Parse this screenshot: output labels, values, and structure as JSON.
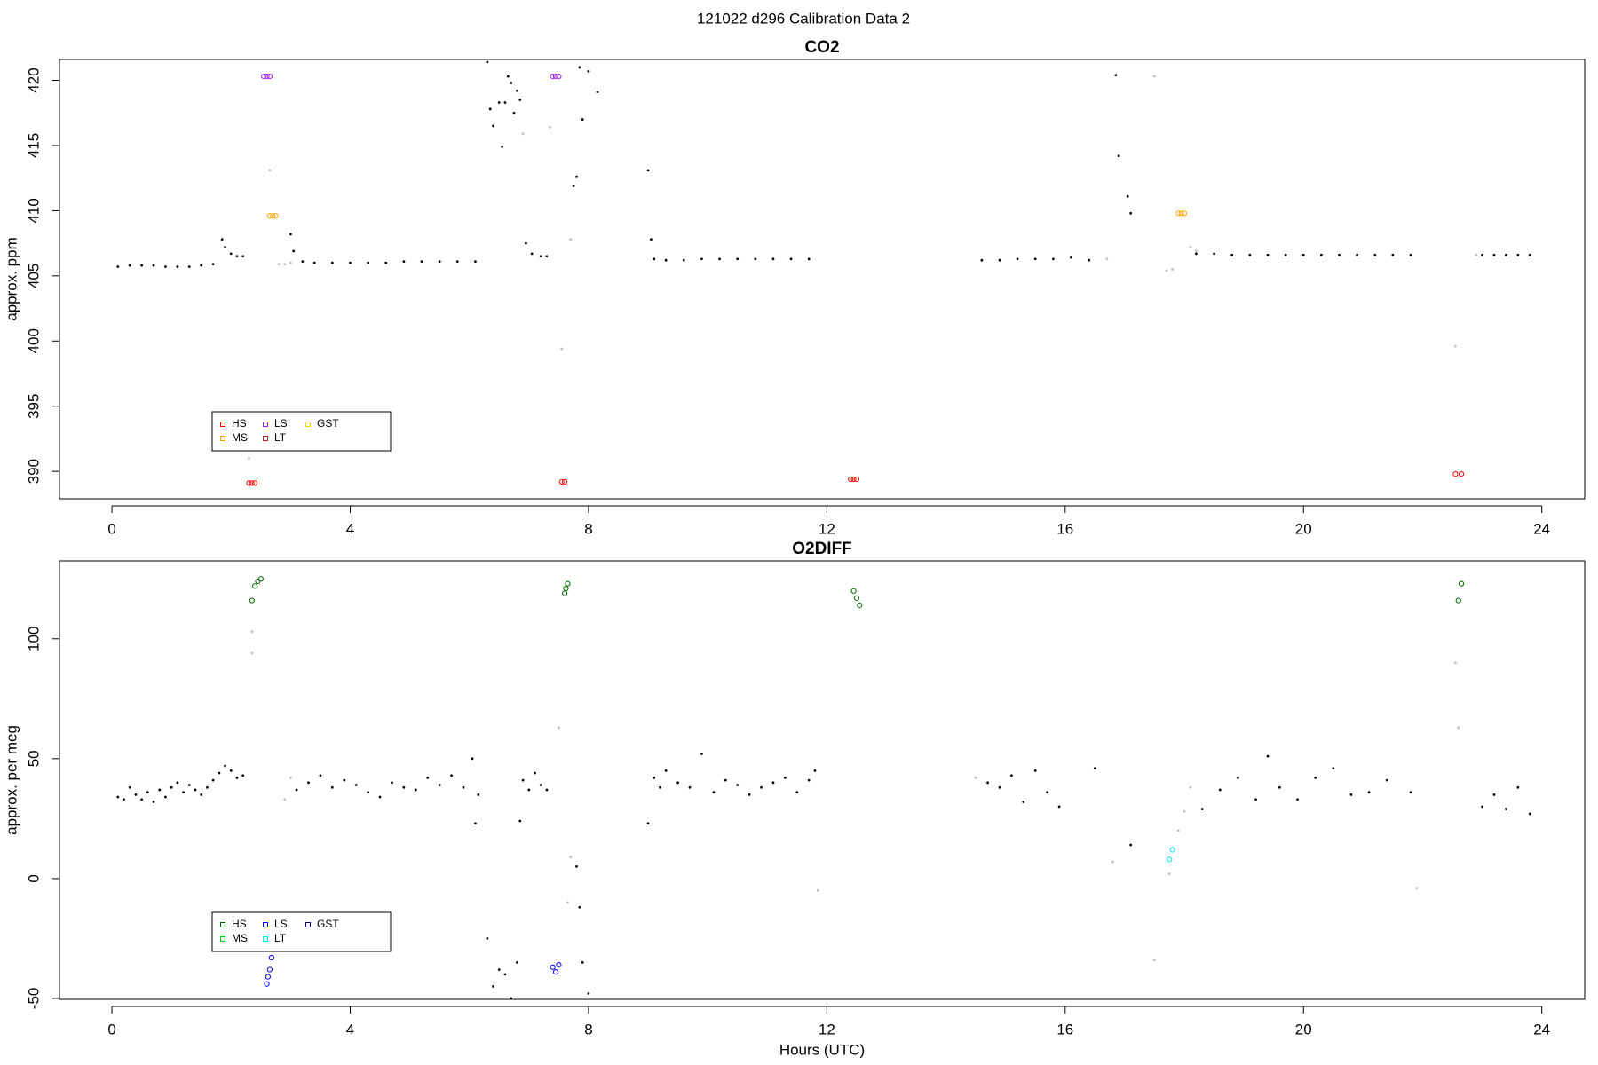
{
  "title": "121022   d296   Calibration Data 2",
  "chart_data": [
    {
      "type": "scatter",
      "title": "CO2",
      "ylabel": "approx. ppm",
      "xlim": [
        -0.88,
        24.72
      ],
      "ylim": [
        387.9,
        421.6
      ],
      "xticks": [
        0,
        4,
        8,
        12,
        16,
        20,
        24
      ],
      "yticks": [
        390,
        395,
        400,
        405,
        410,
        415,
        420
      ],
      "legend": "bottom-left",
      "series": [
        {
          "name": "HS",
          "color": "#ff0000",
          "marker": "open",
          "x": [
            2.3,
            2.35,
            2.4,
            7.55,
            7.6,
            12.4,
            12.45,
            12.5,
            22.55,
            22.65
          ],
          "values": [
            389.1,
            389.1,
            389.1,
            389.2,
            389.2,
            389.4,
            389.4,
            389.4,
            389.8,
            389.8
          ]
        },
        {
          "name": "MS",
          "color": "#ffa500",
          "marker": "open",
          "x": [
            2.65,
            2.7,
            2.75,
            17.9,
            17.95,
            18.0
          ],
          "values": [
            409.6,
            409.6,
            409.6,
            409.8,
            409.8,
            409.8
          ]
        },
        {
          "name": "LS",
          "color": "#a020f0",
          "marker": "open",
          "x": [
            2.55,
            2.6,
            2.65,
            7.4,
            7.45,
            7.5
          ],
          "values": [
            420.3,
            420.3,
            420.3,
            420.3,
            420.3,
            420.3
          ]
        },
        {
          "name": "LT",
          "color": "#b22222",
          "marker": "open",
          "x": [],
          "values": []
        },
        {
          "name": "GST",
          "color": "#ffd700",
          "marker": "open",
          "x": [],
          "values": []
        },
        {
          "color": "#000000",
          "marker": "dot",
          "x": [
            0.1,
            0.3,
            0.5,
            0.7,
            0.9,
            1.1,
            1.3,
            1.5,
            1.7,
            1.85,
            1.9,
            2.0,
            2.1,
            2.2,
            3.0,
            3.05,
            3.2,
            3.4,
            3.7,
            4.0,
            4.3,
            4.6,
            4.9,
            5.2,
            5.5,
            5.8,
            6.1,
            6.3,
            6.35,
            6.4,
            6.5,
            6.55,
            6.6,
            6.65,
            6.7,
            6.75,
            6.8,
            6.85,
            6.95,
            7.05,
            7.2,
            7.3,
            7.75,
            7.8,
            7.85,
            7.9,
            8.0,
            8.15,
            9.0,
            9.05,
            9.1,
            9.3,
            9.6,
            9.9,
            10.2,
            10.5,
            10.8,
            11.1,
            11.4,
            11.7,
            14.6,
            14.9,
            15.2,
            15.5,
            15.8,
            16.1,
            16.4,
            16.85,
            16.9,
            17.05,
            17.1,
            18.2,
            18.5,
            18.8,
            19.1,
            19.4,
            19.7,
            20.0,
            20.3,
            20.6,
            20.9,
            21.2,
            21.5,
            21.8,
            23.0,
            23.2,
            23.4,
            23.6,
            23.8
          ],
          "values": [
            405.7,
            405.8,
            405.8,
            405.8,
            405.7,
            405.7,
            405.7,
            405.8,
            405.9,
            407.8,
            407.2,
            406.7,
            406.5,
            406.5,
            408.2,
            406.9,
            406.1,
            406.0,
            406.0,
            406.0,
            406.0,
            406.0,
            406.1,
            406.1,
            406.1,
            406.1,
            406.1,
            421.4,
            417.8,
            416.5,
            418.3,
            414.9,
            418.3,
            420.3,
            419.8,
            417.5,
            419.2,
            418.5,
            407.5,
            406.7,
            406.5,
            406.5,
            411.9,
            412.6,
            421.0,
            417.0,
            420.7,
            419.1,
            413.1,
            407.8,
            406.3,
            406.2,
            406.2,
            406.3,
            406.3,
            406.3,
            406.3,
            406.3,
            406.3,
            406.3,
            406.2,
            406.2,
            406.3,
            406.3,
            406.3,
            406.4,
            406.2,
            420.4,
            414.2,
            411.1,
            409.8,
            406.7,
            406.7,
            406.6,
            406.6,
            406.6,
            406.6,
            406.6,
            406.6,
            406.6,
            406.6,
            406.6,
            406.6,
            406.6,
            406.6,
            406.6,
            406.6,
            406.6,
            406.6
          ]
        },
        {
          "color": "#bebebe",
          "marker": "dot",
          "x": [
            2.3,
            2.65,
            2.8,
            2.9,
            3.0,
            6.9,
            7.35,
            7.55,
            7.7,
            16.7,
            17.5,
            17.7,
            17.8,
            18.1,
            18.2,
            22.55,
            22.9
          ],
          "values": [
            391.0,
            413.1,
            405.9,
            405.9,
            406.0,
            415.9,
            416.4,
            399.4,
            407.8,
            406.3,
            420.3,
            405.4,
            405.5,
            407.2,
            406.9,
            399.6,
            406.6
          ]
        }
      ]
    },
    {
      "type": "scatter",
      "title": "O2DIFF",
      "ylabel": "approx. per meg",
      "xlabel": "Hours (UTC)",
      "xlim": [
        -0.88,
        24.72
      ],
      "ylim": [
        -50.4,
        132.5
      ],
      "xticks": [
        0,
        4,
        8,
        12,
        16,
        20,
        24
      ],
      "yticks": [
        -50,
        0,
        50,
        100
      ],
      "legend": "bottom-left",
      "series": [
        {
          "name": "HS",
          "color": "#006400",
          "marker": "open",
          "x": [
            2.35,
            2.4,
            2.45,
            2.5,
            7.6,
            7.62,
            7.65,
            12.45,
            12.5,
            12.55,
            22.6,
            22.65
          ],
          "values": [
            116,
            122,
            124,
            125,
            119,
            121,
            123,
            120,
            117,
            114,
            116,
            123
          ]
        },
        {
          "name": "MS",
          "color": "#00cd00",
          "marker": "open",
          "x": [],
          "values": []
        },
        {
          "name": "LS",
          "color": "#0000ff",
          "marker": "open",
          "x": [
            2.6,
            2.62,
            2.65,
            2.68,
            7.4,
            7.45,
            7.5
          ],
          "values": [
            -44,
            -41,
            -38,
            -33,
            -37,
            -39,
            -36
          ]
        },
        {
          "name": "LT",
          "color": "#00e5ee",
          "marker": "open",
          "x": [
            17.75,
            17.8
          ],
          "values": [
            8,
            12
          ]
        },
        {
          "name": "GST",
          "color": "#00008b",
          "marker": "open",
          "x": [],
          "values": []
        },
        {
          "color": "#000000",
          "marker": "dot",
          "x": [
            0.1,
            0.2,
            0.3,
            0.4,
            0.5,
            0.6,
            0.7,
            0.8,
            0.9,
            1.0,
            1.1,
            1.2,
            1.3,
            1.4,
            1.5,
            1.6,
            1.7,
            1.8,
            1.9,
            2.0,
            2.1,
            2.2,
            3.1,
            3.3,
            3.5,
            3.7,
            3.9,
            4.1,
            4.3,
            4.5,
            4.7,
            4.9,
            5.1,
            5.3,
            5.5,
            5.7,
            5.9,
            6.05,
            6.1,
            6.15,
            6.3,
            6.4,
            6.5,
            6.6,
            6.7,
            6.8,
            6.85,
            6.9,
            7.0,
            7.1,
            7.2,
            7.3,
            7.8,
            7.85,
            7.9,
            8.0,
            9.0,
            9.1,
            9.2,
            9.3,
            9.5,
            9.7,
            9.9,
            10.1,
            10.3,
            10.5,
            10.7,
            10.9,
            11.1,
            11.3,
            11.5,
            11.7,
            11.8,
            14.7,
            14.9,
            15.1,
            15.3,
            15.5,
            15.7,
            15.9,
            16.5,
            17.1,
            18.3,
            18.6,
            18.9,
            19.2,
            19.4,
            19.6,
            19.9,
            20.2,
            20.5,
            20.8,
            21.1,
            21.4,
            21.8,
            23.0,
            23.2,
            23.4,
            23.6,
            23.8
          ],
          "values": [
            34,
            33,
            38,
            35,
            33,
            36,
            32,
            37,
            34,
            38,
            40,
            36,
            39,
            37,
            35,
            38,
            41,
            44,
            47,
            45,
            42,
            43,
            37,
            40,
            43,
            38,
            41,
            39,
            36,
            34,
            40,
            38,
            37,
            42,
            39,
            43,
            38,
            50,
            23,
            35,
            -25,
            -45,
            -38,
            -40,
            -50,
            -35,
            24,
            41,
            37,
            44,
            39,
            37,
            5,
            -12,
            -35,
            -48,
            23,
            42,
            38,
            45,
            40,
            38,
            52,
            36,
            41,
            39,
            35,
            38,
            40,
            42,
            36,
            41,
            45,
            40,
            38,
            43,
            32,
            45,
            36,
            30,
            46,
            14,
            29,
            37,
            42,
            33,
            51,
            38,
            33,
            42,
            46,
            35,
            36,
            41,
            36,
            30,
            35,
            29,
            38,
            27
          ]
        },
        {
          "color": "#bebebe",
          "marker": "dot",
          "x": [
            2.35,
            2.35,
            2.9,
            3.0,
            7.5,
            7.7,
            7.65,
            14.5,
            16.8,
            17.5,
            17.75,
            17.9,
            18.0,
            18.1,
            21.9,
            22.55,
            22.6,
            11.85
          ],
          "values": [
            103,
            94,
            33,
            42,
            63,
            9,
            -10,
            42,
            7,
            -34,
            2,
            20,
            28,
            38,
            -4,
            90,
            63,
            -5
          ]
        }
      ]
    }
  ]
}
